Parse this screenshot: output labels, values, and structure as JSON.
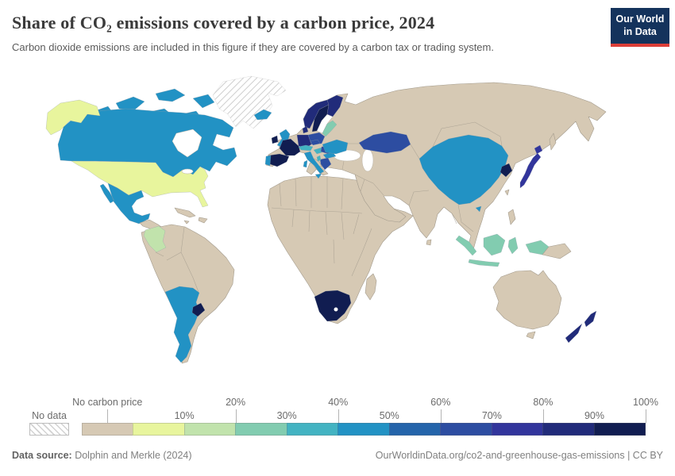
{
  "header": {
    "title": "Share of CO₂ emissions covered by a carbon price, 2024",
    "subtitle": "Carbon dioxide emissions are included in this figure if they are covered by a carbon tax or trading system.",
    "logo_line1": "Our World",
    "logo_line2": "in Data",
    "logo_bg": "#14335c",
    "logo_red": "#dc3e38"
  },
  "legend": {
    "no_data_label": "No data",
    "bins": [
      {
        "label": "No carbon price",
        "color": "#d6c9b4",
        "tick": {
          "text": "No carbon price",
          "row": "high",
          "pos": "center"
        }
      },
      {
        "label": "0-10%",
        "color": "#e8f59d",
        "tick": {
          "text": "10%",
          "row": "low",
          "pos": "end"
        }
      },
      {
        "label": "10-20%",
        "color": "#c1e3ac",
        "tick": {
          "text": "20%",
          "row": "high",
          "pos": "end"
        }
      },
      {
        "label": "20-30%",
        "color": "#82ccb0",
        "tick": {
          "text": "30%",
          "row": "low",
          "pos": "end"
        }
      },
      {
        "label": "30-40%",
        "color": "#43b3c2",
        "tick": {
          "text": "40%",
          "row": "high",
          "pos": "end"
        }
      },
      {
        "label": "40-50%",
        "color": "#2292c4",
        "tick": {
          "text": "50%",
          "row": "low",
          "pos": "end"
        }
      },
      {
        "label": "50-60%",
        "color": "#2464aa",
        "tick": {
          "text": "60%",
          "row": "high",
          "pos": "end"
        }
      },
      {
        "label": "60-70%",
        "color": "#2d4da1",
        "tick": {
          "text": "70%",
          "row": "low",
          "pos": "end"
        }
      },
      {
        "label": "70-80%",
        "color": "#32359c",
        "tick": {
          "text": "80%",
          "row": "high",
          "pos": "end"
        }
      },
      {
        "label": "80-90%",
        "color": "#212b7a",
        "tick": {
          "text": "90%",
          "row": "low",
          "pos": "end"
        }
      },
      {
        "label": "90-100%",
        "color": "#111d51",
        "tick": {
          "text": "100%",
          "row": "high",
          "pos": "end"
        }
      }
    ]
  },
  "chart_data": {
    "type": "choropleth",
    "title": "Share of CO₂ emissions covered by a carbon price, 2024",
    "year": 2024,
    "unit": "% of CO₂ emissions covered",
    "legend_position": "bottom",
    "palette": {
      "land_no_carbon_price": "#d6c9b4",
      "no_data": "hatch",
      "scale": [
        "#e8f59d",
        "#c1e3ac",
        "#82ccb0",
        "#43b3c2",
        "#2292c4",
        "#2464aa",
        "#2d4da1",
        "#32359c",
        "#212b7a",
        "#111d51"
      ]
    },
    "countries": {
      "greenland": {
        "bin": "No data",
        "color": "hatch"
      },
      "canada": {
        "bin": "40-50%",
        "color": "#2292c4"
      },
      "canada-islands": {
        "bin": "40-50%",
        "color": "#2292c4"
      },
      "alaska": {
        "bin": "0-10%",
        "color": "#e8f59d"
      },
      "usa": {
        "bin": "0-10%",
        "color": "#e8f59d"
      },
      "mexico": {
        "bin": "40-50%",
        "color": "#2292c4"
      },
      "colombia": {
        "bin": "10-20%",
        "color": "#c1e3ac"
      },
      "chile-argentina": {
        "bin": "40-50%",
        "color": "#2292c4"
      },
      "uruguay": {
        "bin": "90-100%",
        "color": "#111d51"
      },
      "iceland": {
        "bin": "40-50%",
        "color": "#2292c4"
      },
      "united-kingdom": {
        "bin": "40-50%",
        "color": "#2292c4"
      },
      "ireland": {
        "bin": "90-100%",
        "color": "#111d51"
      },
      "norway": {
        "bin": "80-90%",
        "color": "#212b7a"
      },
      "sweden": {
        "bin": "90-100%",
        "color": "#111d51"
      },
      "finland": {
        "bin": "80-90%",
        "color": "#212b7a"
      },
      "denmark": {
        "bin": "80-90%",
        "color": "#212b7a"
      },
      "baltics": {
        "bin": "20-30%",
        "color": "#82ccb0"
      },
      "germany": {
        "bin": "80-90%",
        "color": "#212b7a"
      },
      "poland": {
        "bin": "60-70%",
        "color": "#2d4da1"
      },
      "czechia": {
        "bin": "60-70%",
        "color": "#2d4da1"
      },
      "france": {
        "bin": "90-100%",
        "color": "#111d51"
      },
      "spain": {
        "bin": "90-100%",
        "color": "#111d51"
      },
      "portugal": {
        "bin": "40-50%",
        "color": "#2292c4"
      },
      "italy": {
        "bin": "40-50%",
        "color": "#2292c4"
      },
      "switzerland-austria": {
        "bin": "30-40%",
        "color": "#43b3c2"
      },
      "hungary": {
        "bin": "30-40%",
        "color": "#43b3c2"
      },
      "romania": {
        "bin": "60-70%",
        "color": "#2d4da1"
      },
      "bulgaria": {
        "bin": "40-50%",
        "color": "#2292c4"
      },
      "greece": {
        "bin": "60-70%",
        "color": "#2d4da1"
      },
      "albania": {
        "bin": "30-40%",
        "color": "#43b3c2"
      },
      "ukraine": {
        "bin": "40-50%",
        "color": "#2292c4"
      },
      "kazakhstan": {
        "bin": "60-70%",
        "color": "#2d4da1"
      },
      "china": {
        "bin": "40-50%",
        "color": "#2292c4"
      },
      "south-korea": {
        "bin": "90-100%",
        "color": "#111d51"
      },
      "japan": {
        "bin": "70-80%",
        "color": "#32359c"
      },
      "indonesia": {
        "bin": "20-30%",
        "color": "#82ccb0"
      },
      "south-africa": {
        "bin": "90-100%",
        "color": "#111d51"
      },
      "new-zealand": {
        "bin": "80-90%",
        "color": "#212b7a"
      },
      "central-america": {
        "bin": "No carbon price",
        "color": "#d6c9b4"
      },
      "caribbean": {
        "bin": "No carbon price",
        "color": "#d6c9b4"
      },
      "south-america-other": {
        "bin": "No carbon price",
        "color": "#d6c9b4"
      },
      "africa-other": {
        "bin": "No carbon price",
        "color": "#d6c9b4"
      },
      "madagascar": {
        "bin": "No carbon price",
        "color": "#d6c9b4"
      },
      "eurasia-other": {
        "bin": "No carbon price",
        "color": "#d6c9b4"
      },
      "papua-new-guinea": {
        "bin": "No carbon price",
        "color": "#d6c9b4"
      },
      "philippines": {
        "bin": "No carbon price",
        "color": "#d6c9b4"
      },
      "australia": {
        "bin": "No carbon price",
        "color": "#d6c9b4"
      },
      "sakhalin": {
        "bin": "No carbon price",
        "color": "#d6c9b4"
      },
      "sri-lanka": {
        "bin": "No carbon price",
        "color": "#d6c9b4"
      },
      "taiwan": {
        "bin": "No carbon price",
        "color": "#d6c9b4"
      }
    }
  },
  "footer": {
    "source_label": "Data source:",
    "source_text": " Dolphin and Merkle (2024)",
    "credit": "OurWorldinData.org/co2-and-greenhouse-gas-emissions | CC BY"
  }
}
